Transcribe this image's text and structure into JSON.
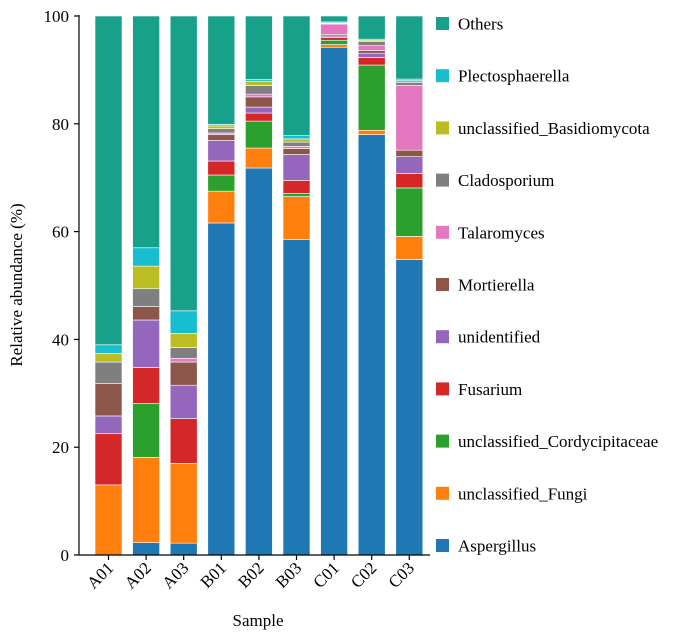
{
  "chart_data": {
    "type": "bar",
    "stacked": true,
    "title": "",
    "xlabel": "Sample",
    "ylabel": "Relative abundance (%)",
    "ylim": [
      0,
      100
    ],
    "yticks": [
      0,
      20,
      40,
      60,
      80,
      100
    ],
    "legend_position": "right",
    "categories": [
      "A01",
      "A02",
      "A03",
      "B01",
      "B02",
      "B03",
      "C01",
      "C02",
      "C03"
    ],
    "series": [
      {
        "name": "Aspergillus",
        "color": "#1f77b4",
        "values": [
          0,
          2.3,
          2.2,
          61.6,
          71.8,
          58.5,
          94.2,
          78.0,
          54.8
        ]
      },
      {
        "name": "unclassified_Fungi",
        "color": "#ff7f0e",
        "values": [
          13.0,
          15.8,
          14.8,
          5.9,
          3.7,
          8.0,
          0.5,
          0.8,
          4.3
        ]
      },
      {
        "name": "unclassified_Cordycipitaceae",
        "color": "#2ca02c",
        "values": [
          0,
          10.0,
          0,
          3.0,
          5.0,
          0.6,
          0.8,
          12.1,
          9.0
        ]
      },
      {
        "name": "Fusarium",
        "color": "#d62728",
        "values": [
          9.5,
          6.7,
          8.3,
          2.6,
          1.5,
          2.4,
          0.5,
          1.4,
          2.7
        ]
      },
      {
        "name": "unidentified",
        "color": "#9467bd",
        "values": [
          3.3,
          8.8,
          6.2,
          3.8,
          1.1,
          4.8,
          0.3,
          0.8,
          3.1
        ]
      },
      {
        "name": "Mortierella",
        "color": "#8c564b",
        "values": [
          6.0,
          2.5,
          4.3,
          1.1,
          1.9,
          1.1,
          0.3,
          0.5,
          1.2
        ]
      },
      {
        "name": "Talaromyces",
        "color": "#e377c2",
        "values": [
          0,
          0,
          0.7,
          0.3,
          0.5,
          0.4,
          1.9,
          0.9,
          12.0
        ]
      },
      {
        "name": "Cladosporium",
        "color": "#7f7f7f",
        "values": [
          4.0,
          3.3,
          2.0,
          0.8,
          1.6,
          0.8,
          0.1,
          0.8,
          0.6
        ]
      },
      {
        "name": "unclassified_Basidiomycota",
        "color": "#bcbd22",
        "values": [
          1.6,
          4.2,
          2.6,
          0.5,
          0.8,
          0.6,
          0.1,
          0.2,
          0.3
        ]
      },
      {
        "name": "Plectosphaerella",
        "color": "#17becf",
        "values": [
          1.6,
          3.4,
          4.2,
          0.3,
          0.3,
          0.6,
          0.2,
          0.2,
          0.3
        ]
      },
      {
        "name": "Others",
        "color": "#17a08a",
        "values": [
          61.0,
          43.0,
          54.7,
          20.1,
          11.8,
          22.2,
          1.1,
          4.3,
          11.7
        ]
      }
    ]
  }
}
